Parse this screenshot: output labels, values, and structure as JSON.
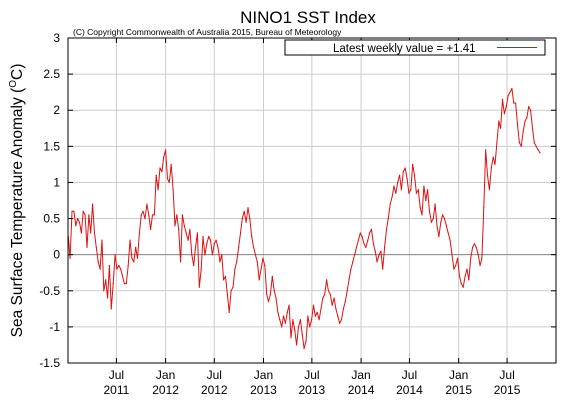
{
  "chart_data": {
    "type": "line",
    "title": "NINO1 SST Index",
    "subtitle": "(C) Copyright Commonwealth of Australia 2015, Bureau of Meteorology",
    "ylabel_main": "Sea Surface Temperature Anomaly (",
    "ylabel_sup": "O",
    "ylabel_unit": "C)",
    "xlabel": "",
    "ylim": [
      -1.5,
      3
    ],
    "yticks": [
      "-1.5",
      "-1",
      "-0.5",
      "0",
      "0.5",
      "1",
      "1.5",
      "2",
      "2.5",
      "3"
    ],
    "xlim": [
      "2011-01-01",
      "2015-12-31"
    ],
    "xticks": [
      {
        "date": "2011-07-01",
        "month": "Jul",
        "year": "2011"
      },
      {
        "date": "2012-01-01",
        "month": "Jan",
        "year": "2012"
      },
      {
        "date": "2012-07-01",
        "month": "Jul",
        "year": "2012"
      },
      {
        "date": "2013-01-01",
        "month": "Jan",
        "year": "2013"
      },
      {
        "date": "2013-07-01",
        "month": "Jul",
        "year": "2013"
      },
      {
        "date": "2014-01-01",
        "month": "Jan",
        "year": "2014"
      },
      {
        "date": "2014-07-01",
        "month": "Jul",
        "year": "2014"
      },
      {
        "date": "2015-01-01",
        "month": "Jan",
        "year": "2015"
      },
      {
        "date": "2015-07-01",
        "month": "Jul",
        "year": "2015"
      }
    ],
    "grid": true,
    "legend_position": "top-right",
    "zero_line": true,
    "line_color": "#dd1111",
    "series": [
      {
        "name": "Latest weekly value = +1.41",
        "points": [
          [
            "2011-01-02",
            0.25
          ],
          [
            "2011-01-09",
            -0.05
          ],
          [
            "2011-01-16",
            0.6
          ],
          [
            "2011-01-23",
            0.6
          ],
          [
            "2011-01-30",
            0.4
          ],
          [
            "2011-02-06",
            0.5
          ],
          [
            "2011-02-13",
            0.45
          ],
          [
            "2011-02-20",
            0.3
          ],
          [
            "2011-02-27",
            0.6
          ],
          [
            "2011-03-06",
            0.55
          ],
          [
            "2011-03-13",
            0.1
          ],
          [
            "2011-03-20",
            0.55
          ],
          [
            "2011-03-27",
            0.3
          ],
          [
            "2011-04-03",
            0.7
          ],
          [
            "2011-04-10",
            0.3
          ],
          [
            "2011-04-17",
            0.1
          ],
          [
            "2011-04-24",
            -0.1
          ],
          [
            "2011-05-01",
            -0.2
          ],
          [
            "2011-05-08",
            0.2
          ],
          [
            "2011-05-15",
            -0.5
          ],
          [
            "2011-05-22",
            -0.35
          ],
          [
            "2011-05-29",
            -0.6
          ],
          [
            "2011-06-05",
            -0.15
          ],
          [
            "2011-06-12",
            -0.75
          ],
          [
            "2011-06-19",
            -0.4
          ],
          [
            "2011-06-26",
            0.0
          ],
          [
            "2011-07-03",
            -0.2
          ],
          [
            "2011-07-10",
            -0.15
          ],
          [
            "2011-07-17",
            -0.2
          ],
          [
            "2011-07-24",
            -0.3
          ],
          [
            "2011-07-31",
            -0.4
          ],
          [
            "2011-08-07",
            -0.4
          ],
          [
            "2011-08-14",
            -0.15
          ],
          [
            "2011-08-21",
            0.2
          ],
          [
            "2011-08-28",
            -0.05
          ],
          [
            "2011-09-04",
            -0.1
          ],
          [
            "2011-09-11",
            0.1
          ],
          [
            "2011-09-18",
            -0.05
          ],
          [
            "2011-09-25",
            0.3
          ],
          [
            "2011-10-02",
            0.55
          ],
          [
            "2011-10-09",
            0.6
          ],
          [
            "2011-10-16",
            0.5
          ],
          [
            "2011-10-23",
            0.7
          ],
          [
            "2011-10-30",
            0.55
          ],
          [
            "2011-11-06",
            0.35
          ],
          [
            "2011-11-13",
            0.55
          ],
          [
            "2011-11-20",
            0.55
          ],
          [
            "2011-11-27",
            1.1
          ],
          [
            "2011-12-04",
            0.9
          ],
          [
            "2011-12-11",
            1.2
          ],
          [
            "2011-12-18",
            1.15
          ],
          [
            "2011-12-25",
            1.35
          ],
          [
            "2012-01-01",
            1.45
          ],
          [
            "2012-01-08",
            1.05
          ],
          [
            "2012-01-15",
            1.0
          ],
          [
            "2012-01-22",
            1.25
          ],
          [
            "2012-01-29",
            0.9
          ],
          [
            "2012-02-05",
            0.4
          ],
          [
            "2012-02-12",
            0.55
          ],
          [
            "2012-02-19",
            0.35
          ],
          [
            "2012-02-26",
            -0.1
          ],
          [
            "2012-03-04",
            0.55
          ],
          [
            "2012-03-11",
            0.4
          ],
          [
            "2012-03-18",
            0.3
          ],
          [
            "2012-03-25",
            0.2
          ],
          [
            "2012-04-01",
            0.35
          ],
          [
            "2012-04-08",
            0.0
          ],
          [
            "2012-04-15",
            -0.15
          ],
          [
            "2012-04-22",
            0.1
          ],
          [
            "2012-04-29",
            0.3
          ],
          [
            "2012-05-06",
            -0.45
          ],
          [
            "2012-05-13",
            -0.2
          ],
          [
            "2012-05-20",
            0.25
          ],
          [
            "2012-05-27",
            0.0
          ],
          [
            "2012-06-03",
            0.15
          ],
          [
            "2012-06-10",
            0.25
          ],
          [
            "2012-06-17",
            0.2
          ],
          [
            "2012-06-24",
            0.0
          ],
          [
            "2012-07-01",
            0.15
          ],
          [
            "2012-07-08",
            0.2
          ],
          [
            "2012-07-15",
            0.1
          ],
          [
            "2012-07-22",
            -0.1
          ],
          [
            "2012-07-29",
            0.0
          ],
          [
            "2012-08-05",
            -0.35
          ],
          [
            "2012-08-12",
            -0.3
          ],
          [
            "2012-08-19",
            -0.55
          ],
          [
            "2012-08-26",
            -0.8
          ],
          [
            "2012-09-02",
            -0.5
          ],
          [
            "2012-09-09",
            -0.45
          ],
          [
            "2012-09-16",
            -0.2
          ],
          [
            "2012-09-23",
            -0.1
          ],
          [
            "2012-09-30",
            0.1
          ],
          [
            "2012-10-07",
            0.3
          ],
          [
            "2012-10-14",
            0.5
          ],
          [
            "2012-10-21",
            0.6
          ],
          [
            "2012-10-28",
            0.45
          ],
          [
            "2012-11-04",
            0.65
          ],
          [
            "2012-11-11",
            0.5
          ],
          [
            "2012-11-18",
            0.25
          ],
          [
            "2012-11-25",
            0.1
          ],
          [
            "2012-12-02",
            0.0
          ],
          [
            "2012-12-09",
            -0.1
          ],
          [
            "2012-12-16",
            -0.35
          ],
          [
            "2012-12-23",
            -0.2
          ],
          [
            "2012-12-30",
            -0.05
          ],
          [
            "2013-01-06",
            -0.15
          ],
          [
            "2013-01-13",
            -0.55
          ],
          [
            "2013-01-20",
            -0.65
          ],
          [
            "2013-01-27",
            -0.55
          ],
          [
            "2013-02-03",
            -0.3
          ],
          [
            "2013-02-10",
            -0.5
          ],
          [
            "2013-02-17",
            -0.6
          ],
          [
            "2013-02-24",
            -0.8
          ],
          [
            "2013-03-03",
            -0.9
          ],
          [
            "2013-03-10",
            -1.0
          ],
          [
            "2013-03-17",
            -0.85
          ],
          [
            "2013-03-24",
            -0.95
          ],
          [
            "2013-03-31",
            -0.8
          ],
          [
            "2013-04-07",
            -0.7
          ],
          [
            "2013-04-14",
            -1.15
          ],
          [
            "2013-04-21",
            -0.9
          ],
          [
            "2013-04-28",
            -1.05
          ],
          [
            "2013-05-05",
            -1.25
          ],
          [
            "2013-05-12",
            -1.0
          ],
          [
            "2013-05-19",
            -0.9
          ],
          [
            "2013-05-26",
            -1.1
          ],
          [
            "2013-06-02",
            -1.3
          ],
          [
            "2013-06-09",
            -1.2
          ],
          [
            "2013-06-16",
            -0.85
          ],
          [
            "2013-06-23",
            -1.0
          ],
          [
            "2013-06-30",
            -0.9
          ],
          [
            "2013-07-07",
            -0.7
          ],
          [
            "2013-07-14",
            -0.85
          ],
          [
            "2013-07-21",
            -0.8
          ],
          [
            "2013-07-28",
            -0.9
          ],
          [
            "2013-08-04",
            -0.75
          ],
          [
            "2013-08-11",
            -0.6
          ],
          [
            "2013-08-18",
            -0.55
          ],
          [
            "2013-08-25",
            -0.35
          ],
          [
            "2013-09-01",
            -0.5
          ],
          [
            "2013-09-08",
            -0.55
          ],
          [
            "2013-09-15",
            -0.7
          ],
          [
            "2013-09-22",
            -0.6
          ],
          [
            "2013-09-29",
            -0.75
          ],
          [
            "2013-10-06",
            -0.85
          ],
          [
            "2013-10-13",
            -0.95
          ],
          [
            "2013-10-20",
            -0.9
          ],
          [
            "2013-10-27",
            -0.75
          ],
          [
            "2013-11-03",
            -0.65
          ],
          [
            "2013-11-10",
            -0.5
          ],
          [
            "2013-11-17",
            -0.35
          ],
          [
            "2013-11-24",
            -0.2
          ],
          [
            "2013-12-01",
            -0.1
          ],
          [
            "2013-12-08",
            0.0
          ],
          [
            "2013-12-15",
            0.1
          ],
          [
            "2013-12-22",
            0.2
          ],
          [
            "2013-12-29",
            0.3
          ],
          [
            "2014-01-05",
            0.25
          ],
          [
            "2014-01-12",
            0.15
          ],
          [
            "2014-01-19",
            0.1
          ],
          [
            "2014-01-26",
            0.2
          ],
          [
            "2014-02-02",
            0.3
          ],
          [
            "2014-02-09",
            0.35
          ],
          [
            "2014-02-16",
            0.15
          ],
          [
            "2014-02-23",
            0.05
          ],
          [
            "2014-03-02",
            -0.1
          ],
          [
            "2014-03-09",
            0.0
          ],
          [
            "2014-03-16",
            0.05
          ],
          [
            "2014-03-23",
            -0.2
          ],
          [
            "2014-03-30",
            0.1
          ],
          [
            "2014-04-06",
            0.35
          ],
          [
            "2014-04-13",
            0.5
          ],
          [
            "2014-04-20",
            0.7
          ],
          [
            "2014-04-27",
            0.8
          ],
          [
            "2014-05-04",
            0.95
          ],
          [
            "2014-05-11",
            0.85
          ],
          [
            "2014-05-18",
            1.0
          ],
          [
            "2014-05-25",
            1.1
          ],
          [
            "2014-06-01",
            0.9
          ],
          [
            "2014-06-08",
            1.15
          ],
          [
            "2014-06-15",
            1.2
          ],
          [
            "2014-06-22",
            1.05
          ],
          [
            "2014-06-29",
            0.85
          ],
          [
            "2014-07-06",
            0.9
          ],
          [
            "2014-07-13",
            1.25
          ],
          [
            "2014-07-20",
            1.1
          ],
          [
            "2014-07-27",
            0.85
          ],
          [
            "2014-08-03",
            0.9
          ],
          [
            "2014-08-10",
            0.65
          ],
          [
            "2014-08-17",
            0.55
          ],
          [
            "2014-08-24",
            0.95
          ],
          [
            "2014-08-31",
            0.75
          ],
          [
            "2014-09-07",
            0.9
          ],
          [
            "2014-09-14",
            0.6
          ],
          [
            "2014-09-21",
            0.45
          ],
          [
            "2014-09-28",
            0.5
          ],
          [
            "2014-10-05",
            0.7
          ],
          [
            "2014-10-12",
            0.4
          ],
          [
            "2014-10-19",
            0.25
          ],
          [
            "2014-10-26",
            0.45
          ],
          [
            "2014-11-02",
            0.55
          ],
          [
            "2014-11-09",
            0.5
          ],
          [
            "2014-11-16",
            0.4
          ],
          [
            "2014-11-23",
            0.3
          ],
          [
            "2014-11-30",
            0.2
          ],
          [
            "2014-12-07",
            0.0
          ],
          [
            "2014-12-14",
            -0.2
          ],
          [
            "2014-12-21",
            -0.15
          ],
          [
            "2014-12-28",
            -0.05
          ],
          [
            "2015-01-04",
            -0.3
          ],
          [
            "2015-01-11",
            -0.4
          ],
          [
            "2015-01-18",
            -0.45
          ],
          [
            "2015-01-25",
            -0.3
          ],
          [
            "2015-02-01",
            -0.2
          ],
          [
            "2015-02-08",
            -0.35
          ],
          [
            "2015-02-15",
            -0.05
          ],
          [
            "2015-02-22",
            0.1
          ],
          [
            "2015-03-01",
            0.15
          ],
          [
            "2015-03-08",
            0.1
          ],
          [
            "2015-03-15",
            0.0
          ],
          [
            "2015-03-22",
            -0.15
          ],
          [
            "2015-03-29",
            -0.05
          ],
          [
            "2015-04-05",
            0.65
          ],
          [
            "2015-04-12",
            1.45
          ],
          [
            "2015-04-19",
            1.1
          ],
          [
            "2015-04-26",
            0.9
          ],
          [
            "2015-05-03",
            1.2
          ],
          [
            "2015-05-10",
            1.35
          ],
          [
            "2015-05-17",
            1.25
          ],
          [
            "2015-05-24",
            1.55
          ],
          [
            "2015-05-31",
            1.85
          ],
          [
            "2015-06-07",
            1.75
          ],
          [
            "2015-06-14",
            2.15
          ],
          [
            "2015-06-21",
            1.95
          ],
          [
            "2015-06-28",
            2.05
          ],
          [
            "2015-07-05",
            2.2
          ],
          [
            "2015-07-12",
            2.25
          ],
          [
            "2015-07-19",
            2.3
          ],
          [
            "2015-07-26",
            2.1
          ],
          [
            "2015-08-02",
            2.1
          ],
          [
            "2015-08-09",
            1.8
          ],
          [
            "2015-08-16",
            1.55
          ],
          [
            "2015-08-23",
            1.5
          ],
          [
            "2015-08-30",
            1.7
          ],
          [
            "2015-09-06",
            1.85
          ],
          [
            "2015-09-13",
            1.9
          ],
          [
            "2015-09-20",
            2.05
          ],
          [
            "2015-09-27",
            2.0
          ],
          [
            "2015-10-04",
            1.75
          ],
          [
            "2015-10-11",
            1.55
          ],
          [
            "2015-10-18",
            1.5
          ],
          [
            "2015-10-25",
            1.45
          ],
          [
            "2015-11-01",
            1.41
          ]
        ]
      }
    ]
  }
}
